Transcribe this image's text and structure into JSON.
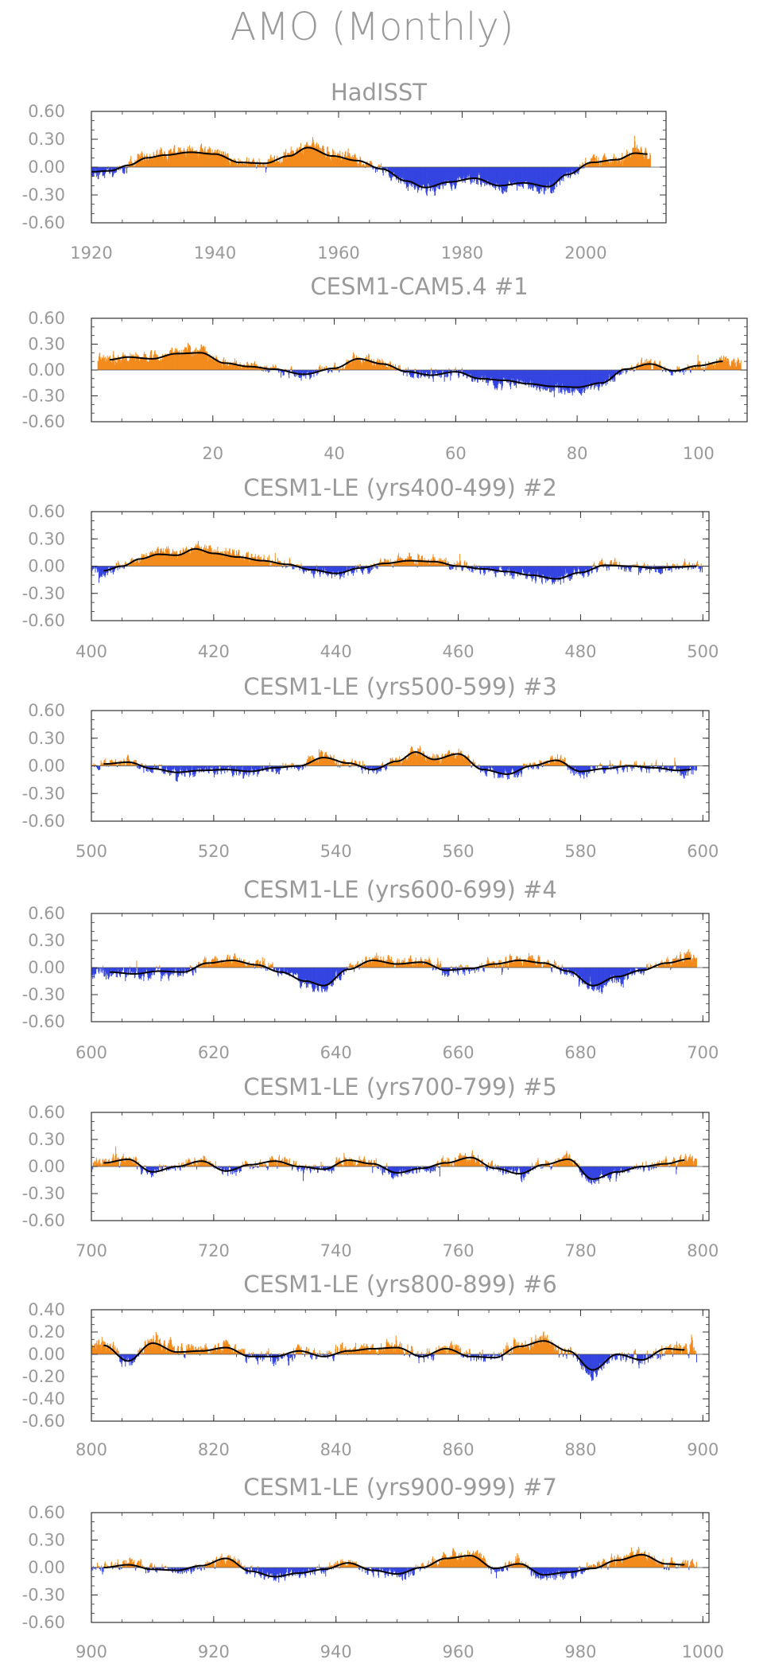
{
  "figure": {
    "title": "AMO (Monthly)"
  },
  "colors": {
    "positive": "#f28a1c",
    "negative": "#3444e0",
    "smooth": "#000000",
    "frame": "#333333",
    "text": "#9a9a9a"
  },
  "chart_data": [
    {
      "type": "bar",
      "title": "HadISST",
      "xlim": [
        1920,
        2013
      ],
      "xticks": [
        1920,
        1940,
        1960,
        1980,
        2000
      ],
      "xtick_labels": [
        "1920",
        "1940",
        "1960",
        "1980",
        "2000"
      ],
      "ylim": [
        -0.6,
        0.6
      ],
      "yticks": [
        0.6,
        0.3,
        0.0,
        -0.3,
        -0.6
      ],
      "ytick_labels": [
        "0.60",
        "0.30",
        "0.00",
        "-0.30",
        "-0.60"
      ],
      "start": 1920,
      "end": 2010.5,
      "seed": 11,
      "smooth_x": [
        1920,
        1923,
        1926,
        1929,
        1932,
        1936,
        1940,
        1944,
        1948,
        1952,
        1955,
        1959,
        1963,
        1967,
        1971,
        1974,
        1978,
        1982,
        1986,
        1990,
        1994,
        1997,
        2001,
        2005,
        2008,
        2010
      ],
      "smooth_y": [
        -0.05,
        -0.04,
        0.02,
        0.1,
        0.13,
        0.16,
        0.14,
        0.05,
        0.04,
        0.12,
        0.21,
        0.12,
        0.07,
        -0.02,
        -0.15,
        -0.22,
        -0.16,
        -0.12,
        -0.2,
        -0.17,
        -0.21,
        -0.08,
        0.05,
        0.08,
        0.15,
        0.14
      ]
    },
    {
      "type": "bar",
      "title": "CESM1-CAM5.4       #1",
      "xlim": [
        0,
        108
      ],
      "xticks": [
        20,
        40,
        60,
        80,
        100
      ],
      "xtick_labels": [
        "20",
        "40",
        "60",
        "80",
        "100"
      ],
      "ylim": [
        -0.6,
        0.6
      ],
      "yticks": [
        0.6,
        0.3,
        0.0,
        -0.3,
        -0.6
      ],
      "ytick_labels": [
        "0.60",
        "0.30",
        "0.00",
        "-0.30",
        "-0.60"
      ],
      "start": 1,
      "end": 107,
      "seed": 22,
      "smooth_x": [
        3,
        6,
        10,
        14,
        18,
        22,
        26,
        30,
        35,
        40,
        44,
        48,
        52,
        56,
        60,
        64,
        68,
        72,
        76,
        80,
        84,
        88,
        92,
        96,
        100,
        104
      ],
      "smooth_y": [
        0.12,
        0.15,
        0.13,
        0.19,
        0.2,
        0.08,
        0.04,
        0.01,
        -0.05,
        0.02,
        0.13,
        0.07,
        -0.02,
        -0.06,
        -0.02,
        -0.1,
        -0.12,
        -0.16,
        -0.19,
        -0.2,
        -0.15,
        0.01,
        0.07,
        -0.01,
        0.05,
        0.1
      ]
    },
    {
      "type": "bar",
      "title": "CESM1-LE (yrs400-499) #2",
      "xlim": [
        400,
        501
      ],
      "xticks": [
        400,
        420,
        440,
        460,
        480,
        500
      ],
      "xtick_labels": [
        "400",
        "420",
        "440",
        "460",
        "480",
        "500"
      ],
      "ylim": [
        -0.6,
        0.6
      ],
      "yticks": [
        0.6,
        0.3,
        0.0,
        -0.3,
        -0.6
      ],
      "ytick_labels": [
        "0.60",
        "0.30",
        "0.00",
        "-0.30",
        "-0.60"
      ],
      "start": 400,
      "end": 500,
      "seed": 33,
      "smooth_x": [
        402,
        405,
        408,
        411,
        414,
        417,
        420,
        424,
        428,
        432,
        436,
        440,
        444,
        448,
        452,
        456,
        460,
        464,
        468,
        472,
        476,
        480,
        484,
        488,
        492,
        496,
        499
      ],
      "smooth_y": [
        -0.05,
        0.0,
        0.08,
        0.13,
        0.12,
        0.19,
        0.14,
        0.1,
        0.06,
        0.02,
        -0.04,
        -0.08,
        -0.02,
        0.03,
        0.06,
        0.05,
        0.0,
        -0.03,
        -0.06,
        -0.1,
        -0.14,
        -0.07,
        0.01,
        0.0,
        -0.02,
        -0.01,
        0.0
      ]
    },
    {
      "type": "bar",
      "title": "CESM1-LE (yrs500-599) #3",
      "xlim": [
        500,
        601
      ],
      "xticks": [
        500,
        520,
        540,
        560,
        580,
        600
      ],
      "xtick_labels": [
        "500",
        "520",
        "540",
        "560",
        "580",
        "600"
      ],
      "ylim": [
        -0.6,
        0.6
      ],
      "yticks": [
        0.6,
        0.3,
        0.0,
        -0.3,
        -0.6
      ],
      "ytick_labels": [
        "0.60",
        "0.30",
        "0.00",
        "-0.30",
        "-0.60"
      ],
      "start": 500,
      "end": 599,
      "seed": 44,
      "smooth_x": [
        502,
        506,
        510,
        514,
        518,
        522,
        526,
        530,
        534,
        538,
        542,
        546,
        550,
        553,
        556,
        560,
        564,
        568,
        572,
        576,
        580,
        584,
        588,
        592,
        596,
        598
      ],
      "smooth_y": [
        0.02,
        0.04,
        -0.03,
        -0.07,
        -0.05,
        -0.04,
        -0.06,
        -0.02,
        0.0,
        0.09,
        0.03,
        -0.04,
        0.05,
        0.15,
        0.07,
        0.13,
        -0.04,
        -0.09,
        0.0,
        0.06,
        -0.06,
        -0.03,
        0.0,
        -0.02,
        -0.05,
        -0.04
      ]
    },
    {
      "type": "bar",
      "title": "CESM1-LE (yrs600-699) #4",
      "xlim": [
        600,
        701
      ],
      "xticks": [
        600,
        620,
        640,
        660,
        680,
        700
      ],
      "xtick_labels": [
        "600",
        "620",
        "640",
        "660",
        "680",
        "700"
      ],
      "ylim": [
        -0.6,
        0.6
      ],
      "yticks": [
        0.6,
        0.3,
        0.0,
        -0.3,
        -0.6
      ],
      "ytick_labels": [
        "0.60",
        "0.30",
        "0.00",
        "-0.30",
        "-0.60"
      ],
      "start": 600,
      "end": 699,
      "seed": 55,
      "smooth_x": [
        603,
        607,
        611,
        615,
        619,
        623,
        627,
        631,
        635,
        638,
        642,
        646,
        650,
        654,
        658,
        662,
        666,
        670,
        674,
        678,
        682,
        686,
        690,
        694,
        698
      ],
      "smooth_y": [
        -0.05,
        -0.07,
        -0.04,
        -0.05,
        0.05,
        0.08,
        0.03,
        -0.05,
        -0.15,
        -0.2,
        -0.02,
        0.08,
        0.04,
        0.06,
        -0.03,
        -0.01,
        0.04,
        0.08,
        0.05,
        -0.04,
        -0.2,
        -0.1,
        -0.03,
        0.05,
        0.1
      ]
    },
    {
      "type": "bar",
      "title": "CESM1-LE (yrs700-799) #5",
      "xlim": [
        700,
        801
      ],
      "xticks": [
        700,
        720,
        740,
        760,
        780,
        800
      ],
      "xtick_labels": [
        "700",
        "720",
        "740",
        "760",
        "780",
        "800"
      ],
      "ylim": [
        -0.6,
        0.6
      ],
      "yticks": [
        0.6,
        0.3,
        0.0,
        -0.3,
        -0.6
      ],
      "ytick_labels": [
        "0.60",
        "0.30",
        "0.00",
        "-0.30",
        "-0.60"
      ],
      "start": 700,
      "end": 799,
      "seed": 66,
      "smooth_x": [
        702,
        706,
        710,
        714,
        718,
        722,
        726,
        730,
        734,
        738,
        742,
        746,
        750,
        754,
        758,
        762,
        766,
        770,
        774,
        778,
        782,
        786,
        790,
        794,
        797
      ],
      "smooth_y": [
        0.04,
        0.08,
        -0.06,
        0.0,
        0.06,
        -0.05,
        0.02,
        0.06,
        0.0,
        -0.03,
        0.07,
        0.03,
        -0.07,
        -0.02,
        0.04,
        0.1,
        -0.02,
        -0.08,
        0.02,
        0.08,
        -0.14,
        -0.06,
        0.0,
        0.03,
        0.07
      ]
    },
    {
      "type": "bar",
      "title": "CESM1-LE (yrs800-899) #6",
      "xlim": [
        800,
        901
      ],
      "xticks": [
        800,
        820,
        840,
        860,
        880,
        900
      ],
      "xtick_labels": [
        "800",
        "820",
        "840",
        "860",
        "880",
        "900"
      ],
      "ylim": [
        -0.6,
        0.4
      ],
      "yticks": [
        0.4,
        0.2,
        0.0,
        -0.2,
        -0.4,
        -0.6
      ],
      "ytick_labels": [
        "0.40",
        "0.20",
        "0.00",
        "-0.20",
        "-0.40",
        "-0.60"
      ],
      "start": 800,
      "end": 899,
      "seed": 77,
      "smooth_x": [
        802,
        806,
        810,
        814,
        818,
        822,
        826,
        830,
        834,
        838,
        842,
        846,
        850,
        854,
        858,
        862,
        866,
        870,
        874,
        878,
        882,
        886,
        890,
        894,
        897
      ],
      "smooth_y": [
        0.08,
        -0.06,
        0.1,
        0.02,
        0.03,
        0.06,
        -0.02,
        -0.02,
        0.03,
        -0.02,
        0.03,
        0.05,
        0.06,
        -0.02,
        0.05,
        -0.02,
        -0.03,
        0.07,
        0.12,
        0.03,
        -0.14,
        0.0,
        -0.05,
        0.05,
        0.04
      ]
    },
    {
      "type": "bar",
      "title": "CESM1-LE (yrs900-999) #7",
      "xlim": [
        900,
        1001
      ],
      "xticks": [
        900,
        920,
        940,
        960,
        980,
        1000
      ],
      "xtick_labels": [
        "900",
        "920",
        "940",
        "960",
        "980",
        "1000"
      ],
      "ylim": [
        -0.6,
        0.6
      ],
      "yticks": [
        0.6,
        0.3,
        0.0,
        -0.3,
        -0.6
      ],
      "ytick_labels": [
        "0.60",
        "0.30",
        "0.00",
        "-0.30",
        "-0.60"
      ],
      "start": 900,
      "end": 999,
      "seed": 88,
      "smooth_x": [
        902,
        906,
        910,
        914,
        918,
        922,
        926,
        930,
        934,
        938,
        942,
        946,
        950,
        954,
        958,
        962,
        966,
        970,
        974,
        978,
        982,
        986,
        990,
        994,
        997
      ],
      "smooth_y": [
        0.0,
        0.03,
        -0.02,
        -0.03,
        0.02,
        0.1,
        -0.04,
        -0.1,
        -0.06,
        -0.02,
        0.05,
        -0.03,
        -0.07,
        0.0,
        0.1,
        0.13,
        -0.01,
        0.04,
        -0.08,
        -0.05,
        -0.01,
        0.08,
        0.14,
        0.04,
        0.03
      ]
    }
  ]
}
